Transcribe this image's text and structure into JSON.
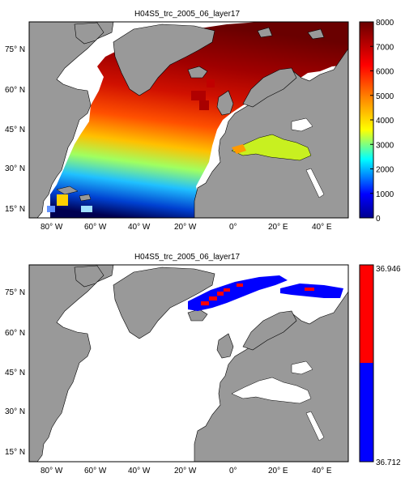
{
  "panels": [
    {
      "title": "H04S5_trc_2005_06_layer17",
      "colorbar": {
        "type": "continuous",
        "ticks": [
          "0",
          "1000",
          "2000",
          "3000",
          "4000",
          "5000",
          "6000",
          "7000",
          "8000"
        ]
      }
    },
    {
      "title": "H04S5_trc_2005_06_layer17",
      "colorbar": {
        "type": "two-class",
        "top_label": "36.946",
        "bottom_label": "36.712",
        "colors": [
          "#ff0000",
          "#0000ff"
        ]
      }
    }
  ],
  "lat_labels": [
    "75° N",
    "60° N",
    "45° N",
    "30° N",
    "15° N"
  ],
  "lon_labels": [
    "80° W",
    "60° W",
    "40° W",
    "20° W",
    "0°",
    "20° E",
    "40° E"
  ],
  "colors": {
    "land": "#999999",
    "ocean_nodata": "#ffffff",
    "high": "#6a0000",
    "low": "#00003a"
  }
}
